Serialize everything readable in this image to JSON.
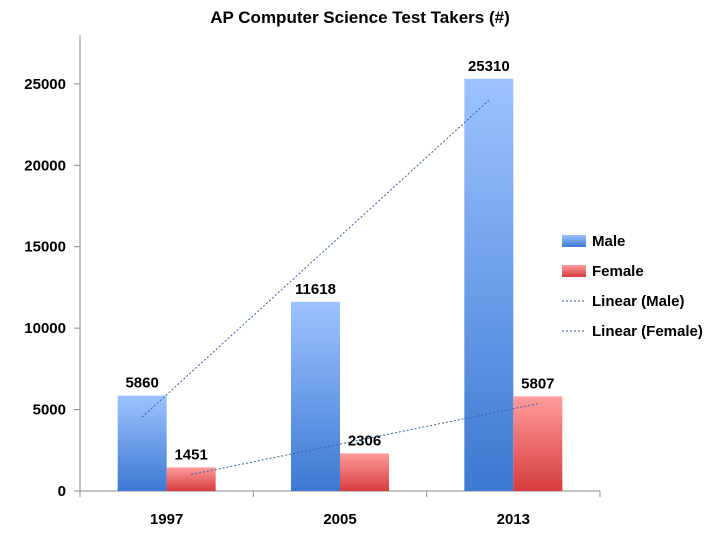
{
  "chart_data": {
    "type": "bar",
    "title": "AP Computer Science Test Takers (#)",
    "xlabel": "",
    "ylabel": "",
    "categories": [
      "1997",
      "2005",
      "2013"
    ],
    "ylim": [
      0,
      28000
    ],
    "yticks": [
      0,
      5000,
      10000,
      15000,
      20000,
      25000
    ],
    "grid": false,
    "legend_position": "right",
    "series": [
      {
        "name": "Male",
        "values": [
          5860,
          11618,
          25310
        ],
        "color": "#5b8fdc"
      },
      {
        "name": "Female",
        "values": [
          1451,
          2306,
          5807
        ],
        "color": "#e06666"
      }
    ],
    "trendlines": [
      {
        "name": "Linear (Male)",
        "series": "Male",
        "type": "linear",
        "color": "#3a5fa0"
      },
      {
        "name": "Linear (Female)",
        "series": "Female",
        "type": "linear",
        "color": "#3a5fa0"
      }
    ]
  }
}
